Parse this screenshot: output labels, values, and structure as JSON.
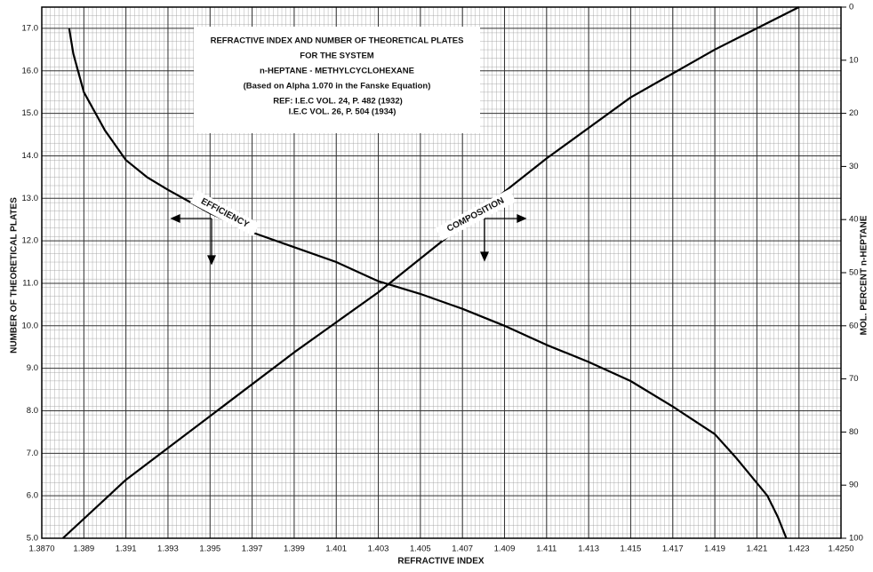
{
  "chart_data": {
    "type": "line",
    "title": [
      "REFRACTIVE INDEX AND NUMBER OF THEORETICAL PLATES",
      "FOR THE SYSTEM",
      "n-HEPTANE - METHYLCYCLOHEXANE",
      "(Based on Alpha 1.070 in the Fanske Equation)",
      "REF: I.E.C VOL. 24, P. 482 (1932)",
      "I.E.C VOL. 26, P. 504 (1934)"
    ],
    "x_label": "REFRACTIVE INDEX",
    "y_label": "NUMBER OF THEORETICAL PLATES",
    "y2_label": "MOL. PERCENT n-HEPTANE",
    "annotations": [
      "EFFICIENCY",
      "COMPOSITION"
    ],
    "xlim": [
      1.387,
      1.425
    ],
    "xticks": [
      {
        "value": 1.387,
        "label": "1.3870"
      },
      1.389,
      1.391,
      1.393,
      1.395,
      1.397,
      1.399,
      1.401,
      1.403,
      1.405,
      1.407,
      1.409,
      1.411,
      1.413,
      1.415,
      1.417,
      1.419,
      1.421,
      1.423,
      {
        "value": 1.425,
        "label": "1.4250"
      }
    ],
    "ylim": [
      5,
      17.5
    ],
    "yticks": [
      {
        "value": 5,
        "label": "5.0"
      },
      {
        "value": 6,
        "label": "6.0"
      },
      {
        "value": 7,
        "label": "7.0"
      },
      {
        "value": 8,
        "label": "8.0"
      },
      {
        "value": 9,
        "label": "9.0"
      },
      {
        "value": 10,
        "label": "10.0"
      },
      {
        "value": 11,
        "label": "11.0"
      },
      {
        "value": 12,
        "label": "12.0"
      },
      {
        "value": 13,
        "label": "13.0"
      },
      {
        "value": 14,
        "label": "14.0"
      },
      {
        "value": 15,
        "label": "15.0"
      },
      {
        "value": 16,
        "label": "16.0"
      },
      {
        "value": 17,
        "label": "17.0"
      }
    ],
    "y2lim": [
      100,
      0
    ],
    "y2ticks": [
      0,
      10,
      20,
      30,
      40,
      50,
      60,
      70,
      80,
      90,
      100
    ],
    "grid": true,
    "series": [
      {
        "name": "EFFICIENCY",
        "color": "#000000",
        "x": [
          1.3883,
          1.3885,
          1.389,
          1.39,
          1.391,
          1.392,
          1.393,
          1.395,
          1.397,
          1.399,
          1.401,
          1.403,
          1.405,
          1.407,
          1.409,
          1.411,
          1.413,
          1.415,
          1.417,
          1.419,
          1.42,
          1.421,
          1.4215,
          1.422,
          1.4224
        ],
        "values": [
          17.0,
          16.4,
          15.5,
          14.6,
          13.9,
          13.5,
          13.2,
          12.65,
          12.2,
          11.85,
          11.5,
          11.05,
          10.75,
          10.4,
          10.0,
          9.55,
          9.15,
          8.7,
          8.1,
          7.45,
          6.9,
          6.3,
          6.0,
          5.5,
          5.0
        ]
      },
      {
        "name": "COMPOSITION",
        "color": "#000000",
        "axis": "y2",
        "x": [
          1.388,
          1.391,
          1.395,
          1.399,
          1.403,
          1.407,
          1.411,
          1.415,
          1.419,
          1.421,
          1.423
        ],
        "values": [
          100,
          89,
          77,
          65,
          53.7,
          41,
          28.5,
          17,
          8,
          4,
          0
        ]
      }
    ]
  }
}
